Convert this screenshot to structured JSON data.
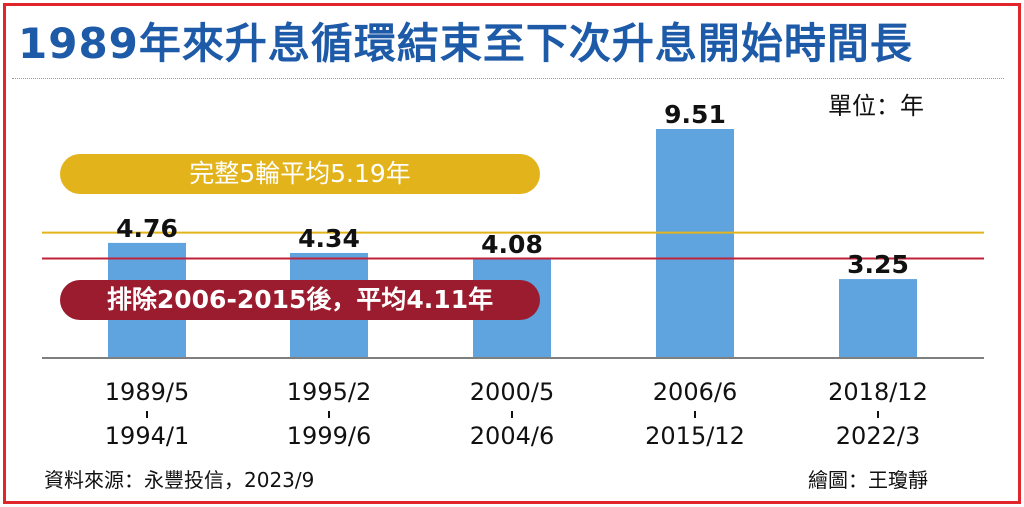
{
  "title": "1989年來升息循環結束至下次升息開始時間長",
  "unit_label": "單位：年",
  "reference_lines": {
    "all_average": {
      "label": "完整5輪平均5.19年",
      "value": 5.19,
      "color": "#e2b31a"
    },
    "excluded_average": {
      "label": "排除2006-2015後，平均4.11年",
      "value": 4.11,
      "color": "#c0223a"
    }
  },
  "source": "資料來源：永豐投信，2023/9",
  "credit": "繪圖：王瓊靜",
  "colors": {
    "bar": "#5fa3df",
    "title": "#1d5aa8",
    "border": "#e0262b"
  },
  "chart_data": {
    "type": "bar",
    "title": "1989年來升息循環結束至下次升息開始時間長",
    "ylabel": "單位：年",
    "categories": [
      {
        "start": "1989/5",
        "end": "1994/1"
      },
      {
        "start": "1995/2",
        "end": "1999/6"
      },
      {
        "start": "2000/5",
        "end": "2004/6"
      },
      {
        "start": "2006/6",
        "end": "2015/12"
      },
      {
        "start": "2018/12",
        "end": "2022/3"
      }
    ],
    "values": [
      4.76,
      4.34,
      4.08,
      9.51,
      3.25
    ],
    "value_labels": [
      "4.76",
      "4.34",
      "4.08",
      "9.51",
      "3.25"
    ],
    "ylim": [
      0,
      9.51
    ],
    "grid": false
  }
}
